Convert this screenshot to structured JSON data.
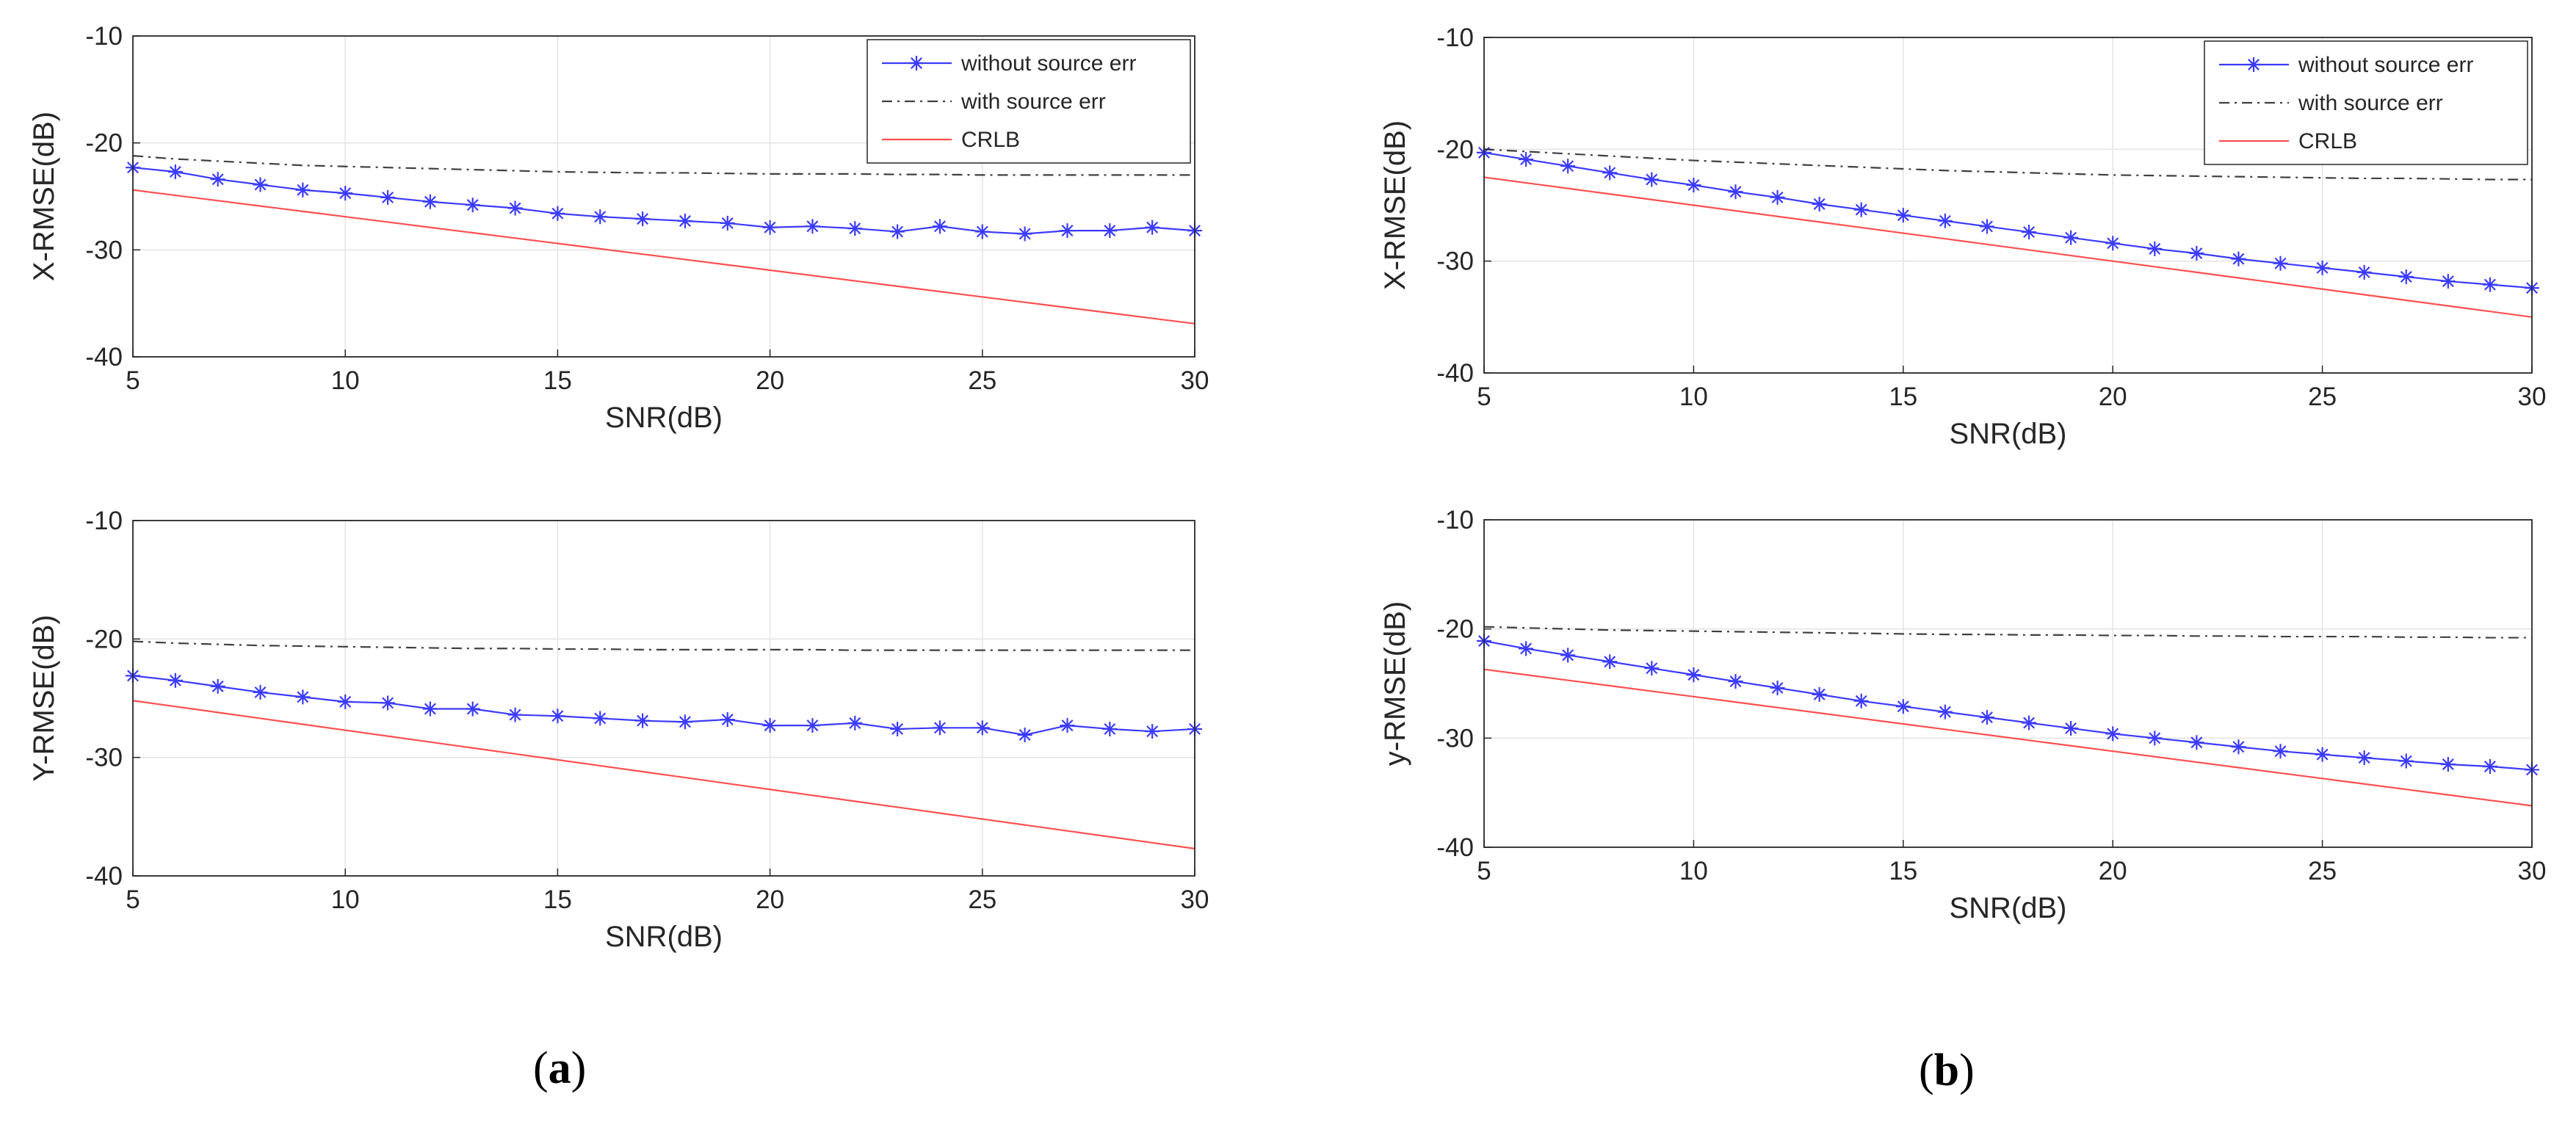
{
  "chart_data": [
    {
      "id": "a-top",
      "type": "line",
      "xlabel": "SNR(dB)",
      "ylabel": "X-RMSE(dB)",
      "xlim": [
        5,
        30
      ],
      "ylim": [
        -40,
        -10
      ],
      "xticks": [
        5,
        10,
        15,
        20,
        25,
        30
      ],
      "yticks": [
        -40,
        -30,
        -20,
        -10
      ],
      "grid": true,
      "legend": "top-right",
      "x": [
        5,
        6,
        7,
        8,
        9,
        10,
        11,
        12,
        13,
        14,
        15,
        16,
        17,
        18,
        19,
        20,
        21,
        22,
        23,
        24,
        25,
        26,
        27,
        28,
        29,
        30
      ],
      "series": [
        {
          "name": "without source err",
          "color": "#3b3bff",
          "style": "solid-star",
          "values": [
            -22.3,
            -22.7,
            -23.4,
            -23.9,
            -24.4,
            -24.7,
            -25.1,
            -25.5,
            -25.8,
            -26.1,
            -26.6,
            -26.9,
            -27.1,
            -27.3,
            -27.5,
            -27.9,
            -27.8,
            -28.0,
            -28.3,
            -27.8,
            -28.3,
            -28.5,
            -28.2,
            -28.2,
            -27.9,
            -28.2
          ]
        },
        {
          "name": "with source err",
          "color": "#404040",
          "style": "dashdot",
          "values": [
            -21.2,
            -21.5,
            -21.7,
            -21.9,
            -22.1,
            -22.2,
            -22.3,
            -22.4,
            -22.5,
            -22.6,
            -22.7,
            -22.75,
            -22.8,
            -22.8,
            -22.85,
            -22.9,
            -22.9,
            -22.9,
            -22.95,
            -22.95,
            -23.0,
            -23.0,
            -23.0,
            -23.0,
            -23.0,
            -23.0
          ]
        },
        {
          "name": "CRLB",
          "color": "#ff5050",
          "style": "solid",
          "values": [
            -24.4,
            -24.9,
            -25.4,
            -25.9,
            -26.4,
            -26.9,
            -27.4,
            -27.9,
            -28.4,
            -28.9,
            -29.4,
            -29.9,
            -30.4,
            -30.9,
            -31.4,
            -31.9,
            -32.4,
            -32.9,
            -33.4,
            -33.9,
            -34.4,
            -34.9,
            -35.4,
            -35.9,
            -36.4,
            -36.9
          ]
        }
      ]
    },
    {
      "id": "a-bottom",
      "type": "line",
      "xlabel": "SNR(dB)",
      "ylabel": "Y-RMSE(dB)",
      "xlim": [
        5,
        30
      ],
      "ylim": [
        -40,
        -10
      ],
      "xticks": [
        5,
        10,
        15,
        20,
        25,
        30
      ],
      "yticks": [
        -40,
        -30,
        -20,
        -10
      ],
      "grid": true,
      "legend": "none",
      "x": [
        5,
        6,
        7,
        8,
        9,
        10,
        11,
        12,
        13,
        14,
        15,
        16,
        17,
        18,
        19,
        20,
        21,
        22,
        23,
        24,
        25,
        26,
        27,
        28,
        29,
        30
      ],
      "series": [
        {
          "name": "without source err",
          "color": "#3b3bff",
          "style": "solid-star",
          "values": [
            -23.1,
            -23.5,
            -24.0,
            -24.5,
            -24.9,
            -25.3,
            -25.4,
            -25.9,
            -25.9,
            -26.4,
            -26.5,
            -26.7,
            -26.9,
            -27.0,
            -26.8,
            -27.3,
            -27.3,
            -27.1,
            -27.6,
            -27.5,
            -27.5,
            -28.1,
            -27.3,
            -27.6,
            -27.8,
            -27.6
          ]
        },
        {
          "name": "with source err",
          "color": "#404040",
          "style": "dashdot",
          "values": [
            -20.2,
            -20.35,
            -20.45,
            -20.55,
            -20.6,
            -20.65,
            -20.7,
            -20.75,
            -20.8,
            -20.8,
            -20.85,
            -20.85,
            -20.9,
            -20.9,
            -20.9,
            -20.9,
            -20.9,
            -20.95,
            -20.95,
            -20.95,
            -20.95,
            -20.95,
            -20.95,
            -20.95,
            -20.95,
            -20.95
          ]
        },
        {
          "name": "CRLB",
          "color": "#ff5050",
          "style": "solid",
          "values": [
            -25.2,
            -25.7,
            -26.2,
            -26.7,
            -27.2,
            -27.7,
            -28.2,
            -28.7,
            -29.2,
            -29.7,
            -30.2,
            -30.7,
            -31.2,
            -31.7,
            -32.2,
            -32.7,
            -33.2,
            -33.7,
            -34.2,
            -34.7,
            -35.2,
            -35.7,
            -36.2,
            -36.7,
            -37.2,
            -37.7
          ]
        }
      ]
    },
    {
      "id": "b-top",
      "type": "line",
      "xlabel": "SNR(dB)",
      "ylabel": "X-RMSE(dB)",
      "xlim": [
        5,
        30
      ],
      "ylim": [
        -40,
        -10
      ],
      "xticks": [
        5,
        10,
        15,
        20,
        25,
        30
      ],
      "yticks": [
        -40,
        -30,
        -20,
        -10
      ],
      "grid": true,
      "legend": "top-right",
      "x": [
        5,
        6,
        7,
        8,
        9,
        10,
        11,
        12,
        13,
        14,
        15,
        16,
        17,
        18,
        19,
        20,
        21,
        22,
        23,
        24,
        25,
        26,
        27,
        28,
        29,
        30
      ],
      "series": [
        {
          "name": "without source err",
          "color": "#3b3bff",
          "style": "solid-star",
          "values": [
            -20.3,
            -20.9,
            -21.5,
            -22.1,
            -22.7,
            -23.2,
            -23.8,
            -24.3,
            -24.9,
            -25.4,
            -25.9,
            -26.4,
            -26.9,
            -27.4,
            -27.9,
            -28.4,
            -28.9,
            -29.3,
            -29.8,
            -30.2,
            -30.6,
            -31.0,
            -31.4,
            -31.8,
            -32.1,
            -32.4
          ]
        },
        {
          "name": "with source err",
          "color": "#404040",
          "style": "dashdot",
          "values": [
            -20.0,
            -20.2,
            -20.4,
            -20.6,
            -20.8,
            -21.0,
            -21.15,
            -21.3,
            -21.45,
            -21.6,
            -21.75,
            -21.9,
            -22.0,
            -22.1,
            -22.2,
            -22.3,
            -22.35,
            -22.4,
            -22.45,
            -22.5,
            -22.55,
            -22.6,
            -22.6,
            -22.65,
            -22.7,
            -22.7
          ]
        },
        {
          "name": "CRLB",
          "color": "#ff5050",
          "style": "solid",
          "values": [
            -22.5,
            -23.0,
            -23.5,
            -24.0,
            -24.5,
            -25.0,
            -25.5,
            -26.0,
            -26.5,
            -27.0,
            -27.5,
            -28.0,
            -28.5,
            -29.0,
            -29.5,
            -30.0,
            -30.5,
            -31.0,
            -31.5,
            -32.0,
            -32.5,
            -33.0,
            -33.5,
            -34.0,
            -34.5,
            -35.0
          ]
        }
      ]
    },
    {
      "id": "b-bottom",
      "type": "line",
      "xlabel": "SNR(dB)",
      "ylabel": "y-RMSE(dB)",
      "xlim": [
        5,
        30
      ],
      "ylim": [
        -40,
        -10
      ],
      "xticks": [
        5,
        10,
        15,
        20,
        25,
        30
      ],
      "yticks": [
        -40,
        -30,
        -20,
        -10
      ],
      "grid": true,
      "legend": "none",
      "x": [
        5,
        6,
        7,
        8,
        9,
        10,
        11,
        12,
        13,
        14,
        15,
        16,
        17,
        18,
        19,
        20,
        21,
        22,
        23,
        24,
        25,
        26,
        27,
        28,
        29,
        30
      ],
      "series": [
        {
          "name": "without source err",
          "color": "#3b3bff",
          "style": "solid-star",
          "values": [
            -21.1,
            -21.8,
            -22.4,
            -23.0,
            -23.6,
            -24.2,
            -24.8,
            -25.4,
            -26.0,
            -26.6,
            -27.1,
            -27.6,
            -28.1,
            -28.6,
            -29.1,
            -29.6,
            -30.0,
            -30.4,
            -30.8,
            -31.2,
            -31.5,
            -31.8,
            -32.1,
            -32.4,
            -32.6,
            -32.9
          ]
        },
        {
          "name": "with source err",
          "color": "#404040",
          "style": "dashdot",
          "values": [
            -19.8,
            -19.9,
            -20.0,
            -20.1,
            -20.15,
            -20.2,
            -20.25,
            -20.3,
            -20.35,
            -20.4,
            -20.45,
            -20.5,
            -20.5,
            -20.55,
            -20.55,
            -20.6,
            -20.6,
            -20.65,
            -20.65,
            -20.7,
            -20.7,
            -20.7,
            -20.75,
            -20.75,
            -20.8,
            -20.8
          ]
        },
        {
          "name": "CRLB",
          "color": "#ff5050",
          "style": "solid",
          "values": [
            -23.7,
            -24.2,
            -24.7,
            -25.2,
            -25.7,
            -26.2,
            -26.7,
            -27.2,
            -27.7,
            -28.2,
            -28.7,
            -29.2,
            -29.7,
            -30.2,
            -30.7,
            -31.2,
            -31.7,
            -32.2,
            -32.7,
            -33.2,
            -33.7,
            -34.2,
            -34.7,
            -35.2,
            -35.7,
            -36.2
          ]
        }
      ]
    }
  ],
  "captions": {
    "a": "a",
    "b": "b"
  }
}
